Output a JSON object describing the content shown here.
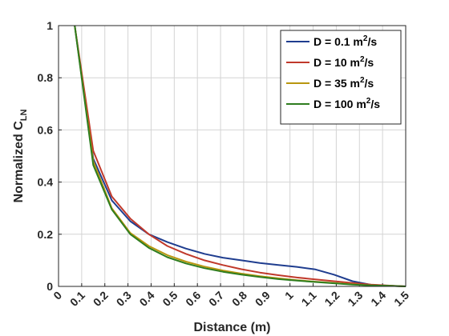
{
  "chart_data": {
    "type": "line",
    "xlabel": "Distance (m)",
    "ylabel": {
      "main": "Normalized C",
      "sub": "LN"
    },
    "xlim": [
      0,
      1.5
    ],
    "ylim": [
      0,
      1
    ],
    "xticks": [
      0,
      0.1,
      0.2,
      0.3,
      0.4,
      0.5,
      0.6,
      0.7,
      0.8,
      0.9,
      1,
      1.1,
      1.2,
      1.3,
      1.4,
      1.5
    ],
    "xtick_labels": [
      "0",
      "0.1",
      "0.2",
      "0.3",
      "0.4",
      "0.5",
      "0.6",
      "0.7",
      "0.8",
      "0.9",
      "1",
      "1.1",
      "1.2",
      "1.3",
      "1.4",
      "1.5"
    ],
    "yticks": [
      0,
      0.2,
      0.4,
      0.6,
      0.8,
      1
    ],
    "ytick_labels": [
      "0",
      "0.2",
      "0.4",
      "0.6",
      "0.8",
      "1"
    ],
    "grid": true,
    "legend_position": "top-right",
    "x": [
      0.07,
      0.15,
      0.23,
      0.31,
      0.39,
      0.47,
      0.55,
      0.63,
      0.71,
      0.79,
      0.87,
      0.95,
      1.03,
      1.11,
      1.19,
      1.27,
      1.35,
      1.43,
      1.5
    ],
    "series": [
      {
        "name": {
          "pre": "D = 0.1 m",
          "sup": "2",
          "post": "/s"
        },
        "color": "#1f3d8f",
        "values": [
          1.0,
          0.49,
          0.33,
          0.25,
          0.2,
          0.17,
          0.145,
          0.125,
          0.11,
          0.1,
          0.09,
          0.082,
          0.075,
          0.065,
          0.045,
          0.02,
          0.006,
          0.002,
          0.0
        ]
      },
      {
        "name": {
          "pre": "D = 10 m",
          "sup": "2",
          "post": "/s"
        },
        "color": "#c0392b",
        "values": [
          1.0,
          0.52,
          0.345,
          0.26,
          0.2,
          0.155,
          0.125,
          0.1,
          0.082,
          0.066,
          0.053,
          0.043,
          0.034,
          0.027,
          0.02,
          0.013,
          0.007,
          0.003,
          0.0
        ]
      },
      {
        "name": {
          "pre": "D = 35 m",
          "sup": "2",
          "post": "/s"
        },
        "color": "#b8960f",
        "values": [
          1.0,
          0.48,
          0.3,
          0.205,
          0.155,
          0.12,
          0.095,
          0.076,
          0.061,
          0.049,
          0.039,
          0.031,
          0.024,
          0.018,
          0.013,
          0.008,
          0.004,
          0.002,
          0.0
        ]
      },
      {
        "name": {
          "pre": "D = 100 m",
          "sup": "2",
          "post": "/s"
        },
        "color": "#2e7d1f",
        "values": [
          1.0,
          0.465,
          0.295,
          0.2,
          0.148,
          0.112,
          0.088,
          0.07,
          0.056,
          0.045,
          0.036,
          0.028,
          0.022,
          0.017,
          0.012,
          0.007,
          0.004,
          0.002,
          0.0
        ]
      }
    ]
  }
}
